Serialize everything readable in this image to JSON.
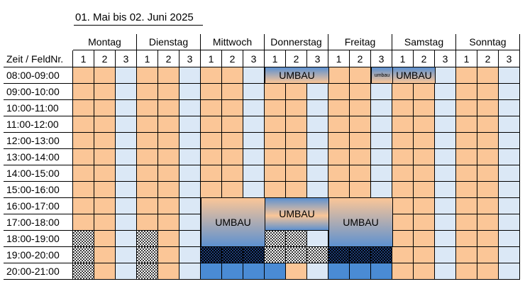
{
  "title": "01. Mai bis 02. Juni 2025",
  "corner_label": "Zeit / FeldNr.",
  "days": [
    "Montag",
    "Dienstag",
    "Mittwoch",
    "Donnerstag",
    "Freitag",
    "Samstag",
    "Sonntag"
  ],
  "field_numbers": [
    "1",
    "2",
    "3"
  ],
  "times": [
    "08:00-09:00",
    "09:00-10:00",
    "10:00-11:00",
    "11:00-12:00",
    "12:00-13:00",
    "13:00-14:00",
    "14:00-15:00",
    "15:00-16:00",
    "16:00-17:00",
    "17:00-18:00",
    "18:00-19:00",
    "19:00-20:00",
    "20:00-21:00"
  ],
  "colors": {
    "field_1_2": "#fbc697",
    "field_3": "#dbe8f6",
    "umbau_blue": "#5d91d0",
    "booked_solid": "#4a8bd4",
    "checker": "#3a3a3a"
  },
  "umbau_blocks": [
    {
      "label": "UMBAU",
      "day": "Donnerstag",
      "fields": "1-3",
      "time": "08:00-09:00"
    },
    {
      "label": "umbau",
      "day": "Freitag",
      "fields": "3",
      "time": "08:00-09:00"
    },
    {
      "label": "UMBAU",
      "day": "Samstag",
      "fields": "1-2",
      "time": "08:00-09:00"
    },
    {
      "label": "UMBAU",
      "day": "Mittwoch",
      "fields": "1-3",
      "time": "16:00-19:00"
    },
    {
      "label": "UMBAU",
      "day": "Donnerstag",
      "fields": "1-3",
      "time": "16:00-18:00"
    },
    {
      "label": "UMBAU",
      "day": "Freitag",
      "fields": "1-3",
      "time": "16:00-19:00"
    }
  ]
}
